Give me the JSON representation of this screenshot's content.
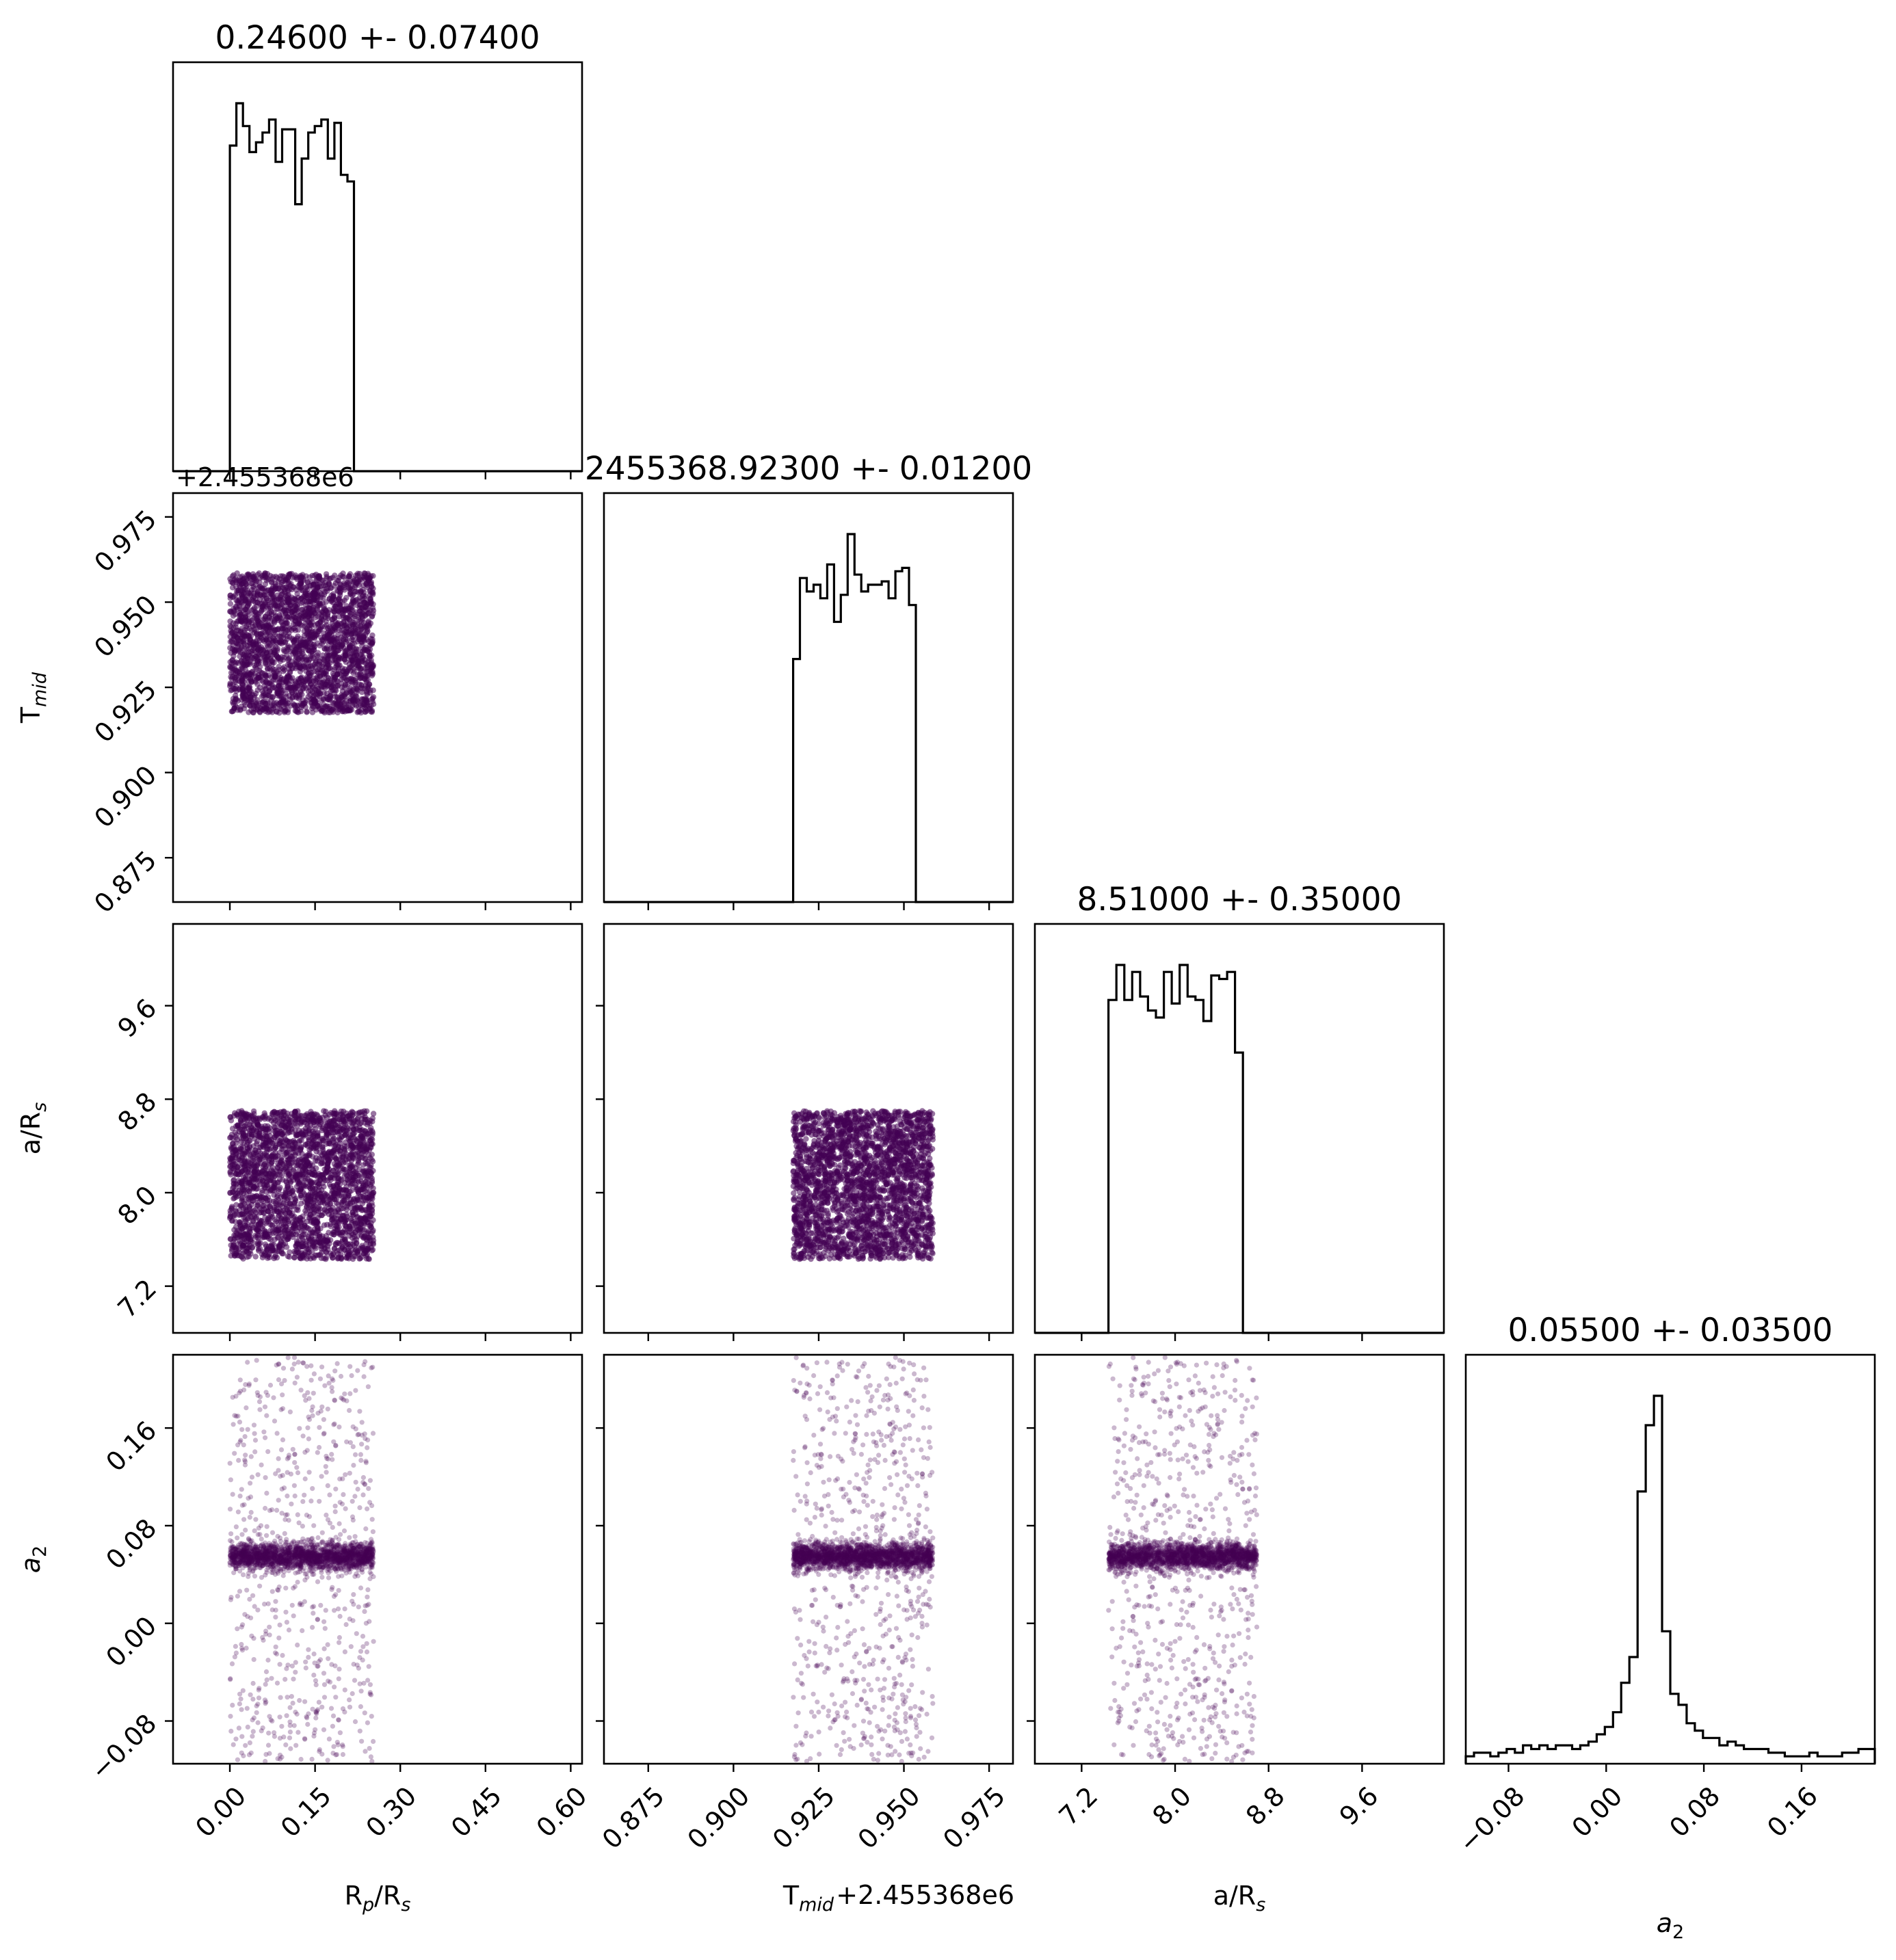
{
  "chart_data": {
    "type": "corner",
    "params": [
      {
        "key": "rp",
        "label": "R",
        "sub": "p",
        "label2": "/R",
        "sub2": "s",
        "italic": false
      },
      {
        "key": "tmid",
        "label": "T",
        "sub": "mid",
        "label2": "",
        "sub2": "",
        "italic": false
      },
      {
        "key": "ars",
        "label": "a/R",
        "sub": "s",
        "label2": "",
        "sub2": "",
        "italic": false
      },
      {
        "key": "a2",
        "label": "a",
        "sub": "2",
        "label2": "",
        "sub2": "",
        "italic": true
      }
    ],
    "titles": [
      "0.24600 +- 0.07400",
      "2455368.92300 +- 0.01200",
      "8.51000 +- 0.35000",
      "0.05500 +- 0.03500"
    ],
    "offset_text": "+2.455368e6",
    "ranges": [
      [
        -0.1,
        0.62
      ],
      [
        0.862,
        0.982
      ],
      [
        6.8,
        10.3
      ],
      [
        -0.115,
        0.22
      ]
    ],
    "ticks": [
      {
        "values": [
          0.0,
          0.15,
          0.3,
          0.45,
          0.6
        ],
        "labels": [
          "0.00",
          "0.15",
          "0.30",
          "0.45",
          "0.60"
        ]
      },
      {
        "values": [
          0.875,
          0.9,
          0.925,
          0.95,
          0.975
        ],
        "labels": [
          "0.875",
          "0.900",
          "0.925",
          "0.950",
          "0.975"
        ]
      },
      {
        "values": [
          7.2,
          8.0,
          8.8,
          9.6
        ],
        "labels": [
          "7.2",
          "8.0",
          "8.8",
          "9.6"
        ]
      },
      {
        "values": [
          -0.08,
          0.0,
          0.08,
          0.16
        ],
        "labels": [
          "−0.08",
          "0.00",
          "0.08",
          "0.16"
        ]
      }
    ],
    "samples": [
      {
        "dist": "uniform",
        "low": 0.0,
        "high": 0.253
      },
      {
        "dist": "uniform",
        "low": 0.9175,
        "high": 0.9585
      },
      {
        "dist": "uniform",
        "low": 7.43,
        "high": 8.7
      },
      {
        "dist": "core_plus_background",
        "core_mean": 0.055,
        "core_sd": 0.0055,
        "background_low": -0.115,
        "background_high": 0.22
      }
    ],
    "histograms": [
      {
        "bins": [
          0.0,
          0.0115,
          0.023,
          0.0345,
          0.046,
          0.0575,
          0.069,
          0.0805,
          0.092,
          0.1035,
          0.115,
          0.1265,
          0.138,
          0.1495,
          0.161,
          0.1725,
          0.184,
          0.1955,
          0.207,
          0.2185,
          0.23,
          0.2415,
          0.253
        ],
        "counts": [
          100,
          113,
          106,
          98,
          101,
          104,
          108,
          95,
          105,
          105,
          82,
          96,
          104,
          106,
          108,
          96,
          107,
          91,
          89,
          0,
          0,
          0
        ]
      },
      {
        "bins": [
          0.9175,
          0.9195,
          0.9215,
          0.9235,
          0.9255,
          0.9275,
          0.9295,
          0.9315,
          0.9335,
          0.9355,
          0.9375,
          0.9395,
          0.9415,
          0.9435,
          0.9455,
          0.9475,
          0.9495,
          0.9515,
          0.9535,
          0.9555,
          0.9575,
          0.9595
        ],
        "counts": [
          72,
          96,
          92,
          94,
          90,
          100,
          83,
          91,
          109,
          97,
          92,
          94,
          94,
          95,
          90,
          98,
          99,
          88,
          0,
          0,
          0
        ]
      },
      {
        "bins": [
          7.43,
          7.4977,
          7.5653,
          7.633,
          7.7007,
          7.7683,
          7.836,
          7.9037,
          7.9713,
          8.039,
          8.1067,
          8.1743,
          8.242,
          8.3097,
          8.3773,
          8.445,
          8.5127,
          8.5803,
          8.648,
          8.7157
        ],
        "counts": [
          95,
          105,
          95,
          103,
          96,
          92,
          90,
          103,
          94,
          105,
          96,
          95,
          89,
          102,
          101,
          103,
          80,
          0,
          0
        ]
      },
      {
        "bins": [
          -0.115,
          -0.1083,
          -0.1016,
          -0.0949,
          -0.0882,
          -0.0815,
          -0.0748,
          -0.0681,
          -0.0614,
          -0.0547,
          -0.048,
          -0.0413,
          -0.0346,
          -0.0279,
          -0.0212,
          -0.0145,
          -0.0078,
          -0.0011,
          0.0056,
          0.0123,
          0.019,
          0.0257,
          0.0324,
          0.0391,
          0.0458,
          0.0525,
          0.0592,
          0.0659,
          0.0726,
          0.0793,
          0.086,
          0.0927,
          0.0994,
          0.1061,
          0.1128,
          0.1195,
          0.1262,
          0.1329,
          0.1396,
          0.1463,
          0.153,
          0.1597,
          0.1664,
          0.1731,
          0.1798,
          0.1865,
          0.1932,
          0.1999,
          0.2066,
          0.2133,
          0.22
        ],
        "counts": [
          2,
          3,
          3,
          2,
          3,
          4,
          3,
          5,
          4,
          5,
          4,
          5,
          5,
          4,
          5,
          6,
          8,
          10,
          14,
          22,
          29,
          74,
          92,
          100,
          36,
          19,
          16,
          11,
          9,
          7,
          7,
          5,
          6,
          5,
          4,
          4,
          4,
          3,
          3,
          2,
          2,
          2,
          3,
          2,
          2,
          2,
          3,
          3,
          4,
          4
        ]
      }
    ],
    "point_color": "#440154"
  }
}
